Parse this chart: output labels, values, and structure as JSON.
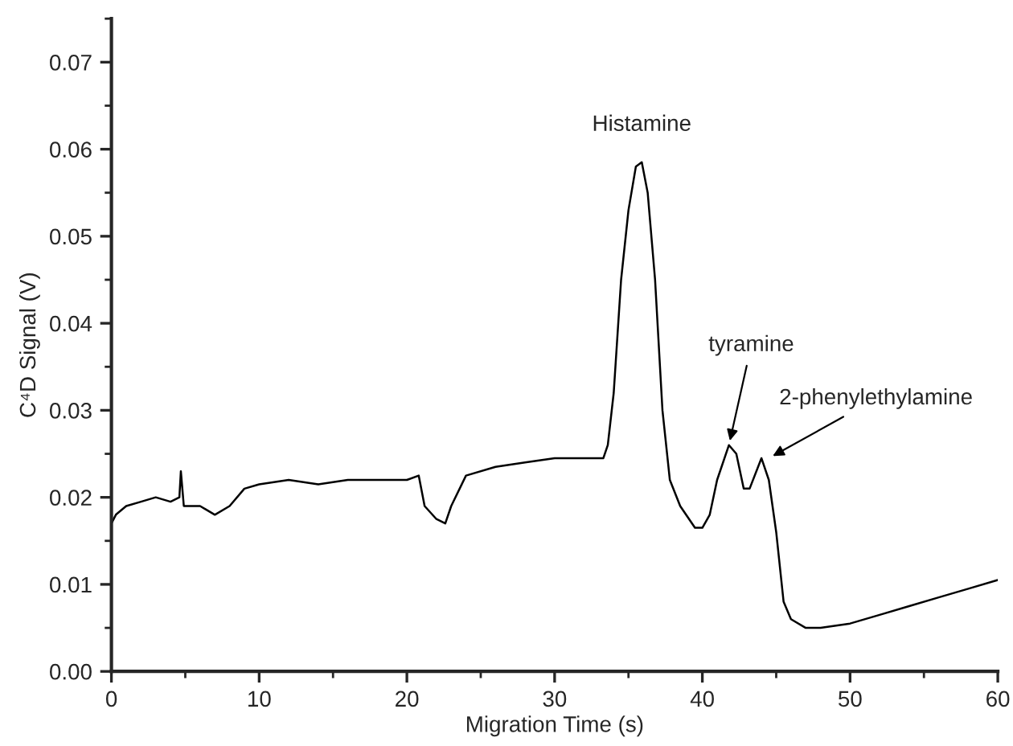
{
  "chart_data": {
    "type": "line",
    "xlabel": "Migration Time (s)",
    "ylabel": "C⁴D Signal (V)",
    "x": [
      0,
      0.3,
      1,
      2,
      3,
      4,
      4.6,
      4.7,
      4.9,
      6,
      7,
      8,
      9,
      10,
      12,
      14,
      16,
      18,
      20,
      20.8,
      21.2,
      22,
      22.6,
      23,
      24,
      26,
      28,
      30,
      32,
      33.3,
      33.6,
      34,
      34.5,
      35,
      35.5,
      35.9,
      36.3,
      36.8,
      37.3,
      37.8,
      38.5,
      39.5,
      40,
      40.5,
      41,
      41.8,
      42.3,
      42.8,
      43.2,
      44,
      44.5,
      45,
      45.5,
      46,
      47,
      48,
      50,
      52,
      54,
      56,
      58,
      60
    ],
    "values": [
      0.017,
      0.018,
      0.019,
      0.0195,
      0.02,
      0.0195,
      0.02,
      0.023,
      0.019,
      0.019,
      0.018,
      0.019,
      0.021,
      0.0215,
      0.022,
      0.0215,
      0.022,
      0.022,
      0.022,
      0.0225,
      0.019,
      0.0175,
      0.017,
      0.019,
      0.0225,
      0.0235,
      0.024,
      0.0245,
      0.0245,
      0.0245,
      0.026,
      0.032,
      0.045,
      0.053,
      0.058,
      0.0585,
      0.055,
      0.045,
      0.03,
      0.022,
      0.019,
      0.0165,
      0.0165,
      0.018,
      0.022,
      0.026,
      0.025,
      0.021,
      0.021,
      0.0245,
      0.022,
      0.016,
      0.008,
      0.006,
      0.005,
      0.005,
      0.0055,
      0.0065,
      0.0075,
      0.0085,
      0.0095,
      0.0105
    ],
    "color": "#000000",
    "xlim": [
      0,
      60
    ],
    "xticks": [
      0,
      10,
      20,
      30,
      40,
      50,
      60
    ],
    "ylim": [
      0,
      0.075
    ],
    "yticks": [
      {
        "value": 0,
        "label": "0.00"
      },
      {
        "value": 0.01,
        "label": "0.01"
      },
      {
        "value": 0.02,
        "label": "0.02"
      },
      {
        "value": 0.03,
        "label": "0.03"
      },
      {
        "value": 0.04,
        "label": "0.04"
      },
      {
        "value": 0.05,
        "label": "0.05"
      },
      {
        "value": 0.06,
        "label": "0.06"
      },
      {
        "value": 0.07,
        "label": "0.07"
      }
    ],
    "grid": false,
    "marker": "none",
    "line_style": "solid",
    "annotations": [
      {
        "text": "Histamine",
        "x": 35.9,
        "y": 0.0585
      },
      {
        "text": "tyramine",
        "x": 41.8,
        "y": 0.026
      },
      {
        "text": "2-phenylethylamine",
        "x": 44.5,
        "y": 0.0245
      }
    ]
  }
}
